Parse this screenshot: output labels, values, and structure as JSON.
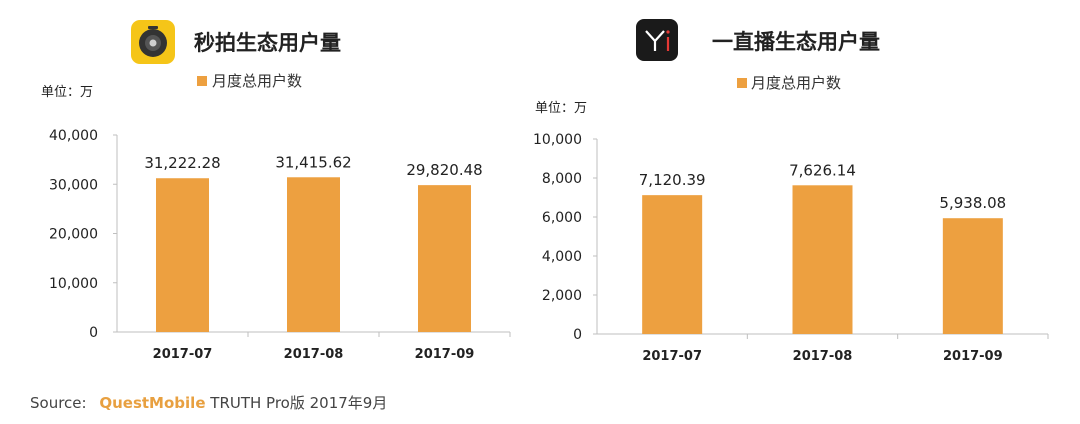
{
  "colors": {
    "bar": "#eda040",
    "accent": "#f5c518",
    "icon_dark": "#1a1a1a"
  },
  "source": {
    "label": "Source:",
    "brand": "QuestMobile",
    "rest": "TRUTH Pro版 2017年9月"
  },
  "chart_data": [
    {
      "type": "bar",
      "title": "秒拍生态用户量",
      "icon": "camera-lens-icon",
      "unit": "单位：万",
      "legend": "月度总用户数",
      "categories": [
        "2017-07",
        "2017-08",
        "2017-09"
      ],
      "values": [
        31222.28,
        31415.62,
        29820.48
      ],
      "value_labels": [
        "31,222.28",
        "31,415.62",
        "29,820.48"
      ],
      "yticks": [
        "0",
        "10,000",
        "20,000",
        "30,000",
        "40,000"
      ],
      "ylim": [
        0,
        40000
      ],
      "legend_position": "top"
    },
    {
      "type": "bar",
      "title": "一直播生态用户量",
      "icon": "yi-logo-icon",
      "unit": "单位：万",
      "legend": "月度总用户数",
      "categories": [
        "2017-07",
        "2017-08",
        "2017-09"
      ],
      "values": [
        7120.39,
        7626.14,
        5938.08
      ],
      "value_labels": [
        "7,120.39",
        "7,626.14",
        "5,938.08"
      ],
      "yticks": [
        "0",
        "2,000",
        "4,000",
        "6,000",
        "8,000",
        "10,000"
      ],
      "ylim": [
        0,
        10000
      ],
      "legend_position": "top"
    }
  ]
}
